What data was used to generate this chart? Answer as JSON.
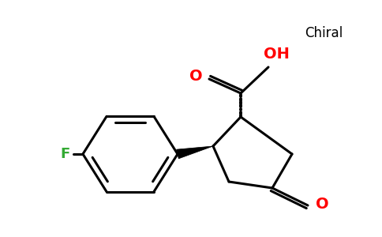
{
  "background_color": "#ffffff",
  "figsize": [
    4.84,
    3.0
  ],
  "dpi": 100,
  "bond_color": "#000000",
  "bond_lw": 2.2,
  "chiral_label": {
    "text": "Chiral",
    "color": "#000000",
    "fontsize": 12
  },
  "oh_label": {
    "text": "OH",
    "color": "#ff0000",
    "fontsize": 14
  },
  "o_carboxyl_label": {
    "text": "O",
    "color": "#ff0000",
    "fontsize": 14
  },
  "o_ketone_label": {
    "text": "O",
    "color": "#ff0000",
    "fontsize": 14
  },
  "f_label": {
    "text": "F",
    "color": "#33aa33",
    "fontsize": 13
  }
}
